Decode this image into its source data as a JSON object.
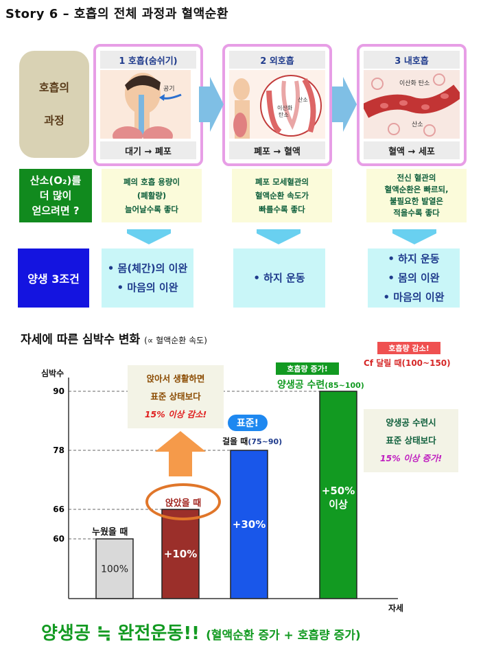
{
  "title": "Story 6 – 호흡의 전체 과정과 혈액순환",
  "process_box": {
    "line1": "호흡의",
    "line2": "과정"
  },
  "panels": [
    {
      "header": "1 호흡(숨쉬기)",
      "footer": "대기 → 폐포",
      "label": "공기"
    },
    {
      "header": "2 외호흡",
      "footer": "폐포 → 혈액",
      "label_a": "이산화",
      "label_b": "탄소",
      "label_c": "산소"
    },
    {
      "header": "3 내호흡",
      "footer": "혈액 → 세포",
      "label_a": "이산화 탄소",
      "label_b": "산소"
    }
  ],
  "question": {
    "line1": "산소(O₂)를",
    "line2": "더 많이",
    "line3": "얻으려면 ?"
  },
  "conditions": [
    {
      "lines": [
        "폐의 호흡 용량이",
        "(폐활량)",
        "늘어날수록 좋다"
      ]
    },
    {
      "lines": [
        "폐포 모세혈관의",
        "혈액순환 속도가",
        "빠를수록 좋다"
      ]
    },
    {
      "lines": [
        "전신 혈관의",
        "혈액순환은 빠르되,",
        "불필요한 발열은",
        "적을수록 좋다"
      ]
    }
  ],
  "three_conditions": "양생 3조건",
  "movements": [
    {
      "lines": [
        "• 몸(체간)의 이완",
        "• 마음의 이완"
      ]
    },
    {
      "lines": [
        "• 하지 운동"
      ]
    },
    {
      "lines": [
        "• 하지 운동",
        "• 몸의 이완",
        "• 마음의 이완"
      ]
    }
  ],
  "section2": {
    "title": "자세에 따른 심박수 변화",
    "note": "(∝ 혈액순환 속도)"
  },
  "chart_data": {
    "type": "bar",
    "ylabel": "심박수",
    "xlabel": "자세",
    "yticks": [
      60,
      66,
      78,
      90
    ],
    "ylim": [
      0,
      100
    ],
    "categories": [
      "누웠을 때",
      "앉았을 때",
      "걸을 때(75~90)",
      "양생공 수련(85~100)"
    ],
    "values": [
      60,
      66,
      78,
      90
    ],
    "bar_labels": [
      "100%",
      "+10%",
      "+30%",
      "+50%"
    ],
    "bar_label_extra": "이상",
    "colors": [
      "#d9d9d9",
      "#9b2f2a",
      "#1957ea",
      "#129a21"
    ],
    "annotations": {
      "standard": "표준!",
      "walk": "걸을 때",
      "walk_range": "(75~90)",
      "training_tag": "호흡량 증가!",
      "training": "양생공 수련",
      "training_range": "(85~100)",
      "cf_tag": "호흡량 감소!",
      "cf": "Cf 달릴 때(100~150)",
      "sit_note": [
        "앉아서 생활하면",
        "표준 상태보다",
        "15% 이상 감소!"
      ],
      "train_note": [
        "양생공 수련시",
        "표준 상태보다",
        "15% 이상 증가!"
      ]
    }
  },
  "bottom": {
    "main": "양생공 ≒ 완전운동!!",
    "sub": "(혈액순환 증가 + 호흡량 증가)"
  }
}
